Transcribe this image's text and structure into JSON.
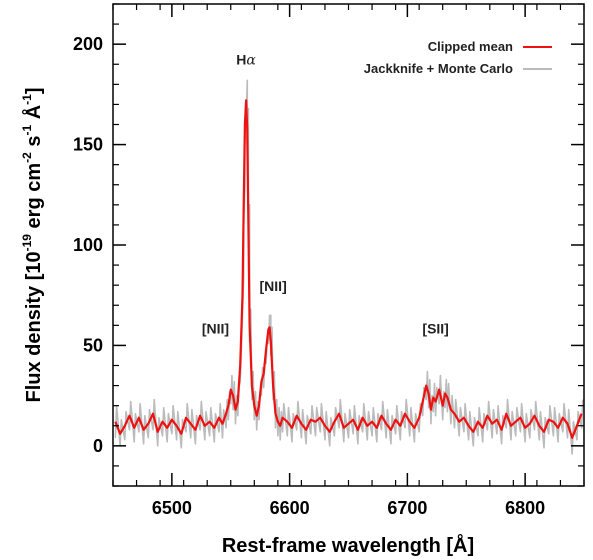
{
  "chart_data": {
    "type": "line",
    "xlabel": "Rest-frame wavelength [Å]",
    "ylabel_parts": {
      "prefix": "Flux density [10",
      "exp1": "-19",
      "mid1": " erg cm",
      "exp2": "-2",
      "mid2": " s",
      "exp3": "-1",
      "mid3": " Å",
      "exp4": "-1",
      "suffix": "]"
    },
    "xlim": [
      6450,
      6850
    ],
    "ylim": [
      -20,
      220
    ],
    "x_ticks": [
      6500,
      6600,
      6700,
      6800
    ],
    "y_ticks": [
      0,
      50,
      100,
      150,
      200
    ],
    "x_minor_step": 20,
    "y_minor_step": 10,
    "legend": {
      "placement": "top-right",
      "entries": [
        {
          "label": "Clipped mean",
          "color": "#ee1111"
        },
        {
          "label": "Jackknife + Monte Carlo",
          "color": "#bbbbbb"
        }
      ]
    },
    "annotations": [
      {
        "text_main": "H",
        "text_italic": "α",
        "x": 6563,
        "y": 190
      },
      {
        "text_main": "[NII]",
        "text_italic": "",
        "x": 6586,
        "y": 77
      },
      {
        "text_main": "[NII]",
        "text_italic": "",
        "x": 6537,
        "y": 56
      },
      {
        "text_main": "[SII]",
        "text_italic": "",
        "x": 6724,
        "y": 56
      }
    ],
    "series": [
      {
        "name": "Clipped mean",
        "color": "#ee1111",
        "x": [
          6452,
          6456,
          6460,
          6464,
          6468,
          6472,
          6476,
          6480,
          6484,
          6488,
          6492,
          6496,
          6500,
          6504,
          6508,
          6512,
          6516,
          6520,
          6524,
          6528,
          6532,
          6536,
          6540,
          6543,
          6546,
          6548,
          6550,
          6552,
          6554,
          6556,
          6558,
          6560,
          6561,
          6562,
          6563,
          6564,
          6565,
          6566,
          6568,
          6570,
          6572,
          6574,
          6576,
          6578,
          6580,
          6582,
          6583,
          6584,
          6586,
          6588,
          6590,
          6592,
          6594,
          6598,
          6602,
          6606,
          6610,
          6614,
          6618,
          6622,
          6626,
          6630,
          6634,
          6638,
          6642,
          6646,
          6650,
          6654,
          6658,
          6662,
          6666,
          6670,
          6674,
          6678,
          6682,
          6686,
          6690,
          6694,
          6698,
          6702,
          6706,
          6710,
          6713,
          6716,
          6718,
          6720,
          6722,
          6724,
          6727,
          6730,
          6732,
          6734,
          6737,
          6740,
          6744,
          6748,
          6752,
          6756,
          6760,
          6764,
          6768,
          6772,
          6776,
          6780,
          6784,
          6788,
          6792,
          6796,
          6800,
          6804,
          6808,
          6812,
          6816,
          6820,
          6824,
          6828,
          6832,
          6836,
          6840,
          6844,
          6848
        ],
        "y": [
          12,
          6,
          10,
          15,
          9,
          14,
          8,
          11,
          16,
          7,
          12,
          9,
          13,
          10,
          6,
          14,
          11,
          8,
          15,
          10,
          12,
          9,
          14,
          11,
          16,
          20,
          28,
          25,
          18,
          22,
          40,
          75,
          120,
          160,
          172,
          158,
          110,
          60,
          30,
          20,
          15,
          20,
          32,
          36,
          48,
          58,
          59,
          52,
          30,
          16,
          12,
          10,
          14,
          12,
          9,
          15,
          11,
          8,
          13,
          12,
          14,
          10,
          7,
          12,
          16,
          9,
          11,
          13,
          8,
          14,
          10,
          12,
          9,
          15,
          11,
          8,
          13,
          10,
          16,
          12,
          9,
          14,
          22,
          30,
          26,
          18,
          24,
          22,
          28,
          20,
          26,
          24,
          18,
          16,
          12,
          14,
          10,
          7,
          12,
          9,
          15,
          11,
          13,
          8,
          16,
          10,
          12,
          14,
          9,
          11,
          15,
          10,
          7,
          13,
          12,
          9,
          14,
          11,
          4,
          10,
          16
        ]
      },
      {
        "name": "Jackknife + Monte Carlo",
        "color": "#bbbbbb",
        "x": [
          6452,
          6456,
          6460,
          6464,
          6468,
          6472,
          6476,
          6480,
          6484,
          6488,
          6492,
          6496,
          6500,
          6504,
          6508,
          6512,
          6516,
          6520,
          6524,
          6528,
          6532,
          6536,
          6540,
          6543,
          6546,
          6548,
          6550,
          6552,
          6554,
          6556,
          6558,
          6560,
          6561,
          6562,
          6563,
          6564,
          6565,
          6566,
          6568,
          6570,
          6572,
          6574,
          6576,
          6578,
          6580,
          6582,
          6583,
          6584,
          6586,
          6588,
          6590,
          6592,
          6594,
          6598,
          6602,
          6606,
          6610,
          6614,
          6618,
          6622,
          6626,
          6630,
          6634,
          6638,
          6642,
          6646,
          6650,
          6654,
          6658,
          6662,
          6666,
          6670,
          6674,
          6678,
          6682,
          6686,
          6690,
          6694,
          6698,
          6702,
          6706,
          6710,
          6713,
          6716,
          6718,
          6720,
          6722,
          6724,
          6727,
          6730,
          6732,
          6734,
          6737,
          6740,
          6744,
          6748,
          6752,
          6756,
          6760,
          6764,
          6768,
          6772,
          6776,
          6780,
          6784,
          6788,
          6792,
          6796,
          6800,
          6804,
          6808,
          6812,
          6816,
          6820,
          6824,
          6828,
          6832,
          6836,
          6840,
          6844,
          6848
        ],
        "y_low": [
          4,
          0,
          3,
          8,
          2,
          7,
          1,
          4,
          8,
          0,
          5,
          2,
          6,
          3,
          -1,
          7,
          4,
          1,
          8,
          3,
          5,
          2,
          7,
          4,
          9,
          13,
          21,
          18,
          11,
          15,
          32,
          66,
          110,
          150,
          162,
          148,
          100,
          52,
          23,
          13,
          8,
          13,
          25,
          29,
          41,
          51,
          53,
          45,
          23,
          9,
          5,
          3,
          7,
          5,
          2,
          8,
          4,
          1,
          6,
          5,
          7,
          3,
          0,
          5,
          9,
          2,
          4,
          6,
          1,
          7,
          3,
          5,
          2,
          8,
          4,
          1,
          6,
          3,
          9,
          5,
          2,
          7,
          15,
          23,
          19,
          11,
          17,
          15,
          21,
          13,
          19,
          17,
          11,
          9,
          5,
          7,
          3,
          0,
          5,
          2,
          8,
          4,
          6,
          1,
          9,
          3,
          5,
          7,
          2,
          4,
          8,
          3,
          -1,
          6,
          5,
          2,
          7,
          4,
          -4,
          3,
          9
        ],
        "y_high": [
          20,
          13,
          17,
          22,
          16,
          21,
          15,
          18,
          23,
          14,
          19,
          16,
          20,
          17,
          13,
          21,
          18,
          15,
          22,
          17,
          19,
          16,
          21,
          18,
          23,
          27,
          35,
          32,
          25,
          29,
          48,
          84,
          130,
          170,
          182,
          168,
          120,
          68,
          37,
          27,
          22,
          27,
          39,
          43,
          55,
          65,
          65,
          59,
          37,
          23,
          19,
          17,
          21,
          19,
          16,
          22,
          18,
          15,
          20,
          19,
          21,
          17,
          14,
          19,
          23,
          16,
          18,
          20,
          15,
          21,
          17,
          19,
          16,
          22,
          18,
          15,
          20,
          17,
          23,
          19,
          16,
          21,
          29,
          37,
          33,
          25,
          31,
          29,
          35,
          27,
          33,
          31,
          25,
          23,
          19,
          21,
          17,
          14,
          19,
          16,
          22,
          18,
          20,
          15,
          23,
          17,
          19,
          21,
          16,
          18,
          22,
          17,
          14,
          20,
          19,
          16,
          21,
          18,
          12,
          17,
          23
        ]
      }
    ]
  }
}
